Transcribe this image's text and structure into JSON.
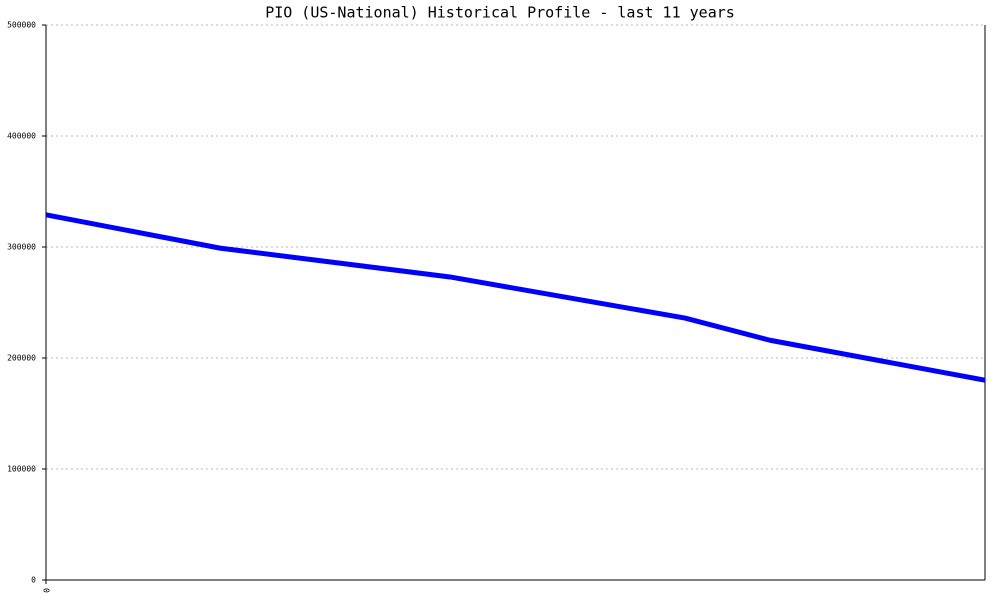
{
  "chart_data": {
    "type": "line",
    "title": "PIO (US-National) Historical Profile - last 11 years",
    "x": [
      0,
      741,
      1721,
      2722,
      3084,
      4000
    ],
    "series": [
      {
        "name": "PIO",
        "color": "#0000ff",
        "values": [
          329000,
          299000,
          273000,
          236000,
          216000,
          180000
        ]
      }
    ],
    "xlim": [
      0,
      4000
    ],
    "xticks": [
      0
    ],
    "ylim": [
      0,
      500000
    ],
    "yticks": [
      0,
      100000,
      200000,
      300000,
      400000,
      500000
    ],
    "grid": true
  }
}
